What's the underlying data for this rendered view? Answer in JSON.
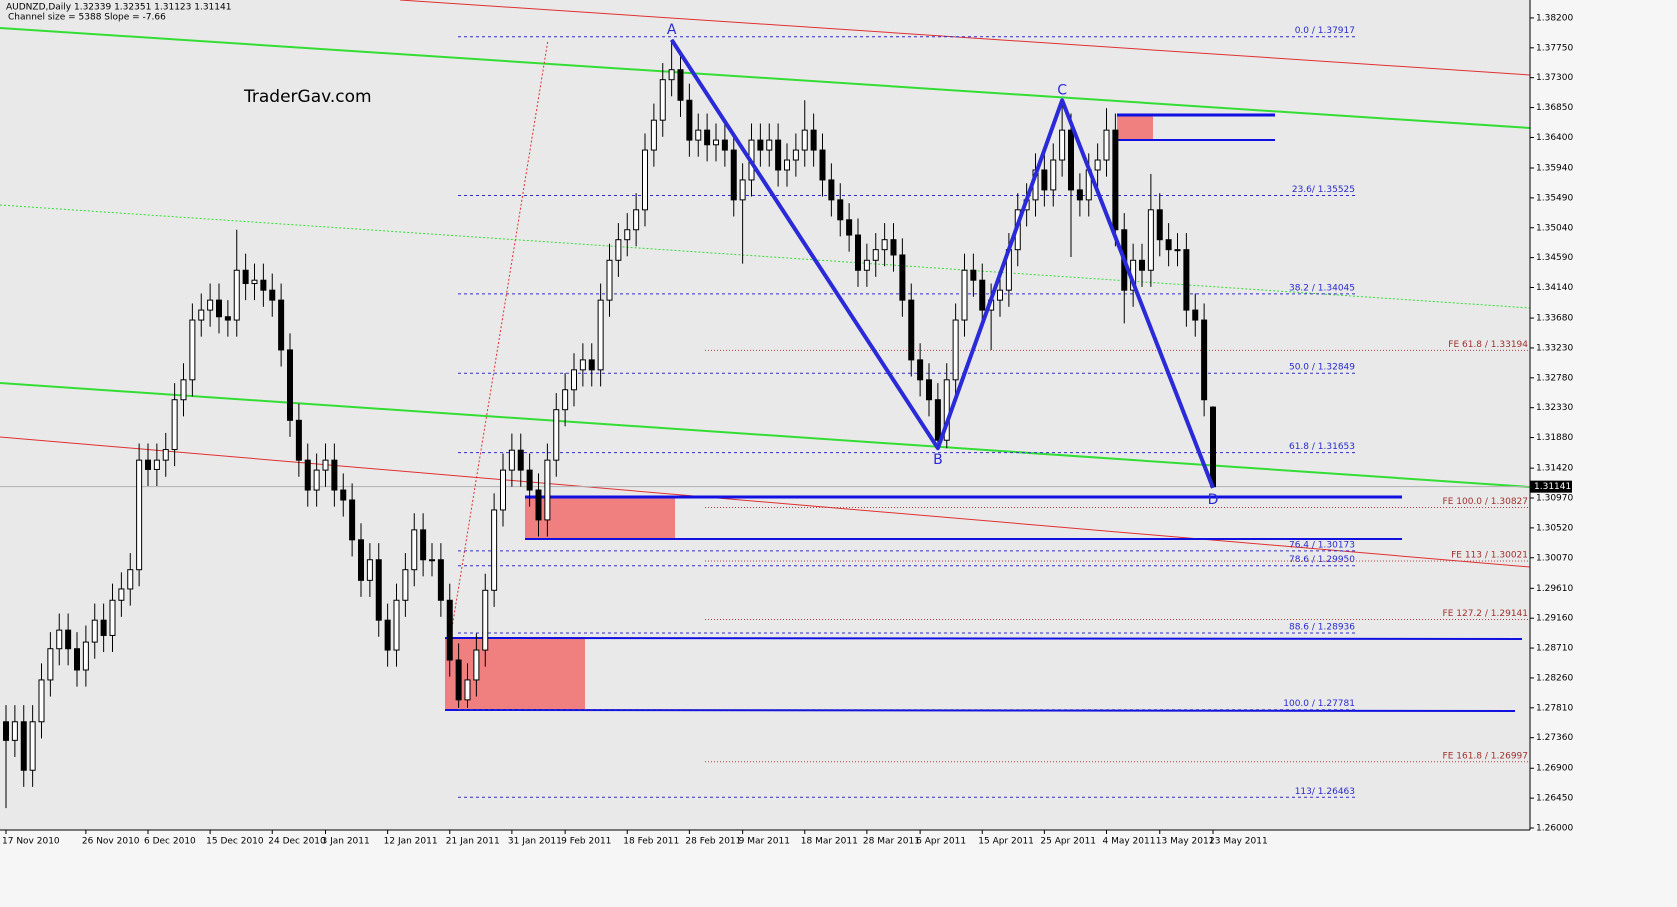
{
  "chart_data": {
    "type": "candlestick",
    "title": "AUDNZD,Daily  1.32339 1.32351 1.31123 1.31141",
    "subtitle": "Channel size = 5388 Slope = -7.66",
    "watermark": "TraderGav.com",
    "categories": [
      "17 Nov 2010",
      null,
      null,
      null,
      null,
      null,
      null,
      null,
      null,
      "26 Nov 2010",
      null,
      null,
      null,
      null,
      null,
      null,
      "6 Dec 2010",
      null,
      null,
      null,
      null,
      null,
      null,
      "15 Dec 2010",
      null,
      null,
      null,
      null,
      null,
      null,
      "24 Dec 2010",
      null,
      null,
      null,
      null,
      null,
      "3 Jan 2011",
      null,
      null,
      null,
      null,
      null,
      null,
      "12 Jan 2011",
      null,
      null,
      null,
      null,
      null,
      null,
      "21 Jan 2011",
      null,
      null,
      null,
      null,
      null,
      null,
      "31 Jan 2011",
      null,
      null,
      null,
      null,
      null,
      "9 Feb 2011",
      null,
      null,
      null,
      null,
      null,
      null,
      "18 Feb 2011",
      null,
      null,
      null,
      null,
      null,
      null,
      "28 Feb 2011",
      null,
      null,
      null,
      null,
      null,
      "9 Mar 2011",
      null,
      null,
      null,
      null,
      null,
      null,
      "18 Mar 2011",
      null,
      null,
      null,
      null,
      null,
      null,
      "28 Mar 2011",
      null,
      null,
      null,
      null,
      null,
      "6 Apr 2011",
      null,
      null,
      null,
      null,
      null,
      null,
      "15 Apr 2011",
      null,
      null,
      null,
      null,
      null,
      null,
      "25 Apr 2011",
      null,
      null,
      null,
      null,
      null,
      null,
      "4 May 2011",
      null,
      null,
      null,
      null,
      null,
      "13 May 2011",
      null,
      null,
      null,
      null,
      null,
      "23 May 2011"
    ],
    "open": [
      1.276,
      1.2732,
      1.276,
      1.2687,
      1.276,
      1.2823,
      1.287,
      1.2898,
      1.287,
      1.2838,
      1.288,
      1.2913,
      1.289,
      1.2943,
      1.296,
      1.2989,
      1.3154,
      1.314,
      1.3154,
      1.317,
      1.3245,
      1.3275,
      1.3365,
      1.338,
      1.3395,
      1.337,
      1.3365,
      1.344,
      1.342,
      1.3425,
      1.341,
      1.3395,
      1.332,
      1.3214,
      1.3154,
      1.3109,
      1.3139,
      1.3154,
      1.3109,
      1.3094,
      1.3034,
      1.2973,
      1.3004,
      1.2913,
      1.2868,
      1.2943,
      1.2989,
      1.3049,
      1.3004,
      1.3004,
      1.2943,
      1.2853,
      1.2793,
      1.2823,
      1.2868,
      1.2958,
      1.3079,
      1.3139,
      1.3169,
      1.3139,
      1.3109,
      1.3064,
      1.3154,
      1.323,
      1.326,
      1.329,
      1.3305,
      1.329,
      1.3395,
      1.3455,
      1.3486,
      1.3501,
      1.3531,
      1.3621,
      1.3666,
      1.3727,
      1.3742,
      1.3696,
      1.3636,
      1.3651,
      1.3629,
      1.3636,
      1.3621,
      1.3546,
      1.3576,
      1.3636,
      1.3621,
      1.3636,
      1.3591,
      1.3606,
      1.3621,
      1.3651,
      1.3621,
      1.3576,
      1.3546,
      1.3516,
      1.3493,
      1.344,
      1.3455,
      1.3471,
      1.3486,
      1.3463,
      1.3395,
      1.3305,
      1.3275,
      1.3245,
      1.3184,
      1.3275,
      1.3365,
      1.344,
      1.3425,
      1.338,
      1.3395,
      1.341,
      1.3471,
      1.3531,
      1.3546,
      1.3591,
      1.3561,
      1.3606,
      1.3651,
      1.3561,
      1.3546,
      1.3591,
      1.3606,
      1.3651,
      1.3501,
      1.341,
      1.3455,
      1.344,
      1.3531,
      1.3486,
      1.3471,
      1.3471,
      1.338,
      1.3365,
      1.32339
    ],
    "high": [
      1.2785,
      1.2785,
      1.2785,
      1.2785,
      1.2848,
      1.2895,
      1.2923,
      1.2923,
      1.2895,
      1.2905,
      1.2938,
      1.2938,
      1.2968,
      1.2985,
      1.3014,
      1.3179,
      1.3179,
      1.3179,
      1.3195,
      1.327,
      1.33,
      1.339,
      1.3405,
      1.342,
      1.342,
      1.3395,
      1.3501,
      1.3465,
      1.345,
      1.345,
      1.3435,
      1.342,
      1.3345,
      1.3239,
      1.3179,
      1.3164,
      1.3179,
      1.3179,
      1.3134,
      1.3119,
      1.3059,
      1.3029,
      1.3029,
      1.2938,
      1.2968,
      1.3014,
      1.3074,
      1.3074,
      1.3029,
      1.3029,
      1.2968,
      1.2878,
      1.2848,
      1.2893,
      1.2983,
      1.3104,
      1.3164,
      1.3194,
      1.3194,
      1.3164,
      1.3134,
      1.3179,
      1.3255,
      1.3285,
      1.3315,
      1.333,
      1.333,
      1.342,
      1.348,
      1.3511,
      1.3526,
      1.3556,
      1.3646,
      1.3691,
      1.3752,
      1.3787,
      1.3767,
      1.3721,
      1.3676,
      1.3676,
      1.3661,
      1.3661,
      1.3646,
      1.3601,
      1.3661,
      1.3661,
      1.3661,
      1.3661,
      1.3631,
      1.3646,
      1.3696,
      1.3676,
      1.3646,
      1.3601,
      1.3571,
      1.3541,
      1.3518,
      1.348,
      1.3496,
      1.3511,
      1.3511,
      1.3488,
      1.342,
      1.333,
      1.33,
      1.327,
      1.33,
      1.339,
      1.3465,
      1.3465,
      1.345,
      1.342,
      1.3435,
      1.3496,
      1.3556,
      1.3571,
      1.3616,
      1.3616,
      1.3631,
      1.3696,
      1.3676,
      1.3586,
      1.3616,
      1.3631,
      1.3684,
      1.3676,
      1.3526,
      1.348,
      1.348,
      1.3585,
      1.3556,
      1.3511,
      1.3496,
      1.3496,
      1.3405,
      1.339,
      1.32351
    ],
    "low": [
      1.263,
      1.2707,
      1.2662,
      1.2662,
      1.2735,
      1.2798,
      1.2845,
      1.2845,
      1.2813,
      1.2813,
      1.2855,
      1.2865,
      1.2865,
      1.2918,
      1.2935,
      1.2964,
      1.3115,
      1.3115,
      1.3129,
      1.3145,
      1.322,
      1.325,
      1.334,
      1.3355,
      1.3345,
      1.334,
      1.334,
      1.3395,
      1.3395,
      1.3385,
      1.337,
      1.3295,
      1.3189,
      1.3129,
      1.3084,
      1.3084,
      1.3114,
      1.3084,
      1.3069,
      1.3009,
      1.2948,
      1.2948,
      1.2888,
      1.2843,
      1.2843,
      1.2918,
      1.2964,
      1.2979,
      1.2979,
      1.2918,
      1.2828,
      1.2781,
      1.2781,
      1.2798,
      1.2843,
      1.2933,
      1.3054,
      1.3114,
      1.3114,
      1.3084,
      1.3039,
      1.3039,
      1.3129,
      1.3205,
      1.3235,
      1.3265,
      1.3265,
      1.3265,
      1.337,
      1.343,
      1.3461,
      1.3476,
      1.3506,
      1.3596,
      1.3641,
      1.3702,
      1.3671,
      1.3611,
      1.3611,
      1.3604,
      1.3604,
      1.3596,
      1.3521,
      1.345,
      1.3551,
      1.3596,
      1.3596,
      1.3566,
      1.3566,
      1.3581,
      1.3596,
      1.3596,
      1.3551,
      1.3521,
      1.3491,
      1.3468,
      1.3415,
      1.3415,
      1.343,
      1.3446,
      1.3438,
      1.337,
      1.328,
      1.325,
      1.322,
      1.3172,
      1.3172,
      1.325,
      1.334,
      1.34,
      1.3355,
      1.332,
      1.337,
      1.3385,
      1.3446,
      1.3506,
      1.3521,
      1.3536,
      1.3536,
      1.3581,
      1.346,
      1.3521,
      1.3521,
      1.3566,
      1.3581,
      1.3476,
      1.336,
      1.3385,
      1.3415,
      1.3415,
      1.3461,
      1.3446,
      1.3446,
      1.3355,
      1.334,
      1.322,
      1.31123
    ],
    "close": [
      1.2732,
      1.276,
      1.2687,
      1.276,
      1.2823,
      1.287,
      1.2898,
      1.287,
      1.2838,
      1.288,
      1.2913,
      1.289,
      1.2943,
      1.296,
      1.2989,
      1.3154,
      1.314,
      1.3154,
      1.317,
      1.3245,
      1.3275,
      1.3365,
      1.338,
      1.3395,
      1.337,
      1.3365,
      1.344,
      1.342,
      1.3425,
      1.341,
      1.3395,
      1.332,
      1.3214,
      1.3154,
      1.3109,
      1.3139,
      1.3154,
      1.3109,
      1.3094,
      1.3034,
      1.2973,
      1.3004,
      1.2913,
      1.2868,
      1.2943,
      1.2989,
      1.3049,
      1.3004,
      1.3004,
      1.2943,
      1.2853,
      1.2793,
      1.2823,
      1.2868,
      1.2958,
      1.3079,
      1.3139,
      1.3169,
      1.3139,
      1.3109,
      1.3064,
      1.3154,
      1.323,
      1.326,
      1.329,
      1.3305,
      1.329,
      1.3395,
      1.3455,
      1.3486,
      1.3501,
      1.3531,
      1.3621,
      1.3666,
      1.3727,
      1.3742,
      1.3696,
      1.3636,
      1.3651,
      1.3629,
      1.3636,
      1.3621,
      1.3546,
      1.3576,
      1.3636,
      1.3621,
      1.3636,
      1.3591,
      1.3606,
      1.3621,
      1.3651,
      1.3621,
      1.3576,
      1.3546,
      1.3516,
      1.3493,
      1.344,
      1.3455,
      1.3471,
      1.3486,
      1.3463,
      1.3395,
      1.3305,
      1.3275,
      1.3245,
      1.3184,
      1.3275,
      1.3365,
      1.344,
      1.3425,
      1.338,
      1.3395,
      1.341,
      1.3471,
      1.3531,
      1.3546,
      1.3591,
      1.3561,
      1.3606,
      1.3651,
      1.3561,
      1.3546,
      1.3591,
      1.3606,
      1.3651,
      1.3501,
      1.341,
      1.3455,
      1.344,
      1.3531,
      1.3486,
      1.3471,
      1.3471,
      1.338,
      1.3365,
      1.3245,
      1.31141
    ],
    "last_price": 1.31141,
    "ylim": [
      1.2597,
      1.3847
    ],
    "yticks": [
      {
        "value": 1.382,
        "label": "1.38200"
      },
      {
        "value": 1.3775,
        "label": "1.37750"
      },
      {
        "value": 1.373,
        "label": "1.37300"
      },
      {
        "value": 1.3685,
        "label": "1.36850"
      },
      {
        "value": 1.364,
        "label": "1.36400"
      },
      {
        "value": 1.3594,
        "label": "1.35940"
      },
      {
        "value": 1.3549,
        "label": "1.35490"
      },
      {
        "value": 1.3504,
        "label": "1.35040"
      },
      {
        "value": 1.3459,
        "label": "1.34590"
      },
      {
        "value": 1.3414,
        "label": "1.34140"
      },
      {
        "value": 1.3368,
        "label": "1.33680"
      },
      {
        "value": 1.3323,
        "label": "1.33230"
      },
      {
        "value": 1.3278,
        "label": "1.32780"
      },
      {
        "value": 1.3233,
        "label": "1.32330"
      },
      {
        "value": 1.3188,
        "label": "1.31880"
      },
      {
        "value": 1.3142,
        "label": "1.31420"
      },
      {
        "value": 1.3097,
        "label": "1.30970"
      },
      {
        "value": 1.3052,
        "label": "1.30520"
      },
      {
        "value": 1.3007,
        "label": "1.30070"
      },
      {
        "value": 1.2961,
        "label": "1.29610"
      },
      {
        "value": 1.2916,
        "label": "1.29160"
      },
      {
        "value": 1.2871,
        "label": "1.28710"
      },
      {
        "value": 1.2826,
        "label": "1.28260"
      },
      {
        "value": 1.2781,
        "label": "1.27810"
      },
      {
        "value": 1.2736,
        "label": "1.27360"
      },
      {
        "value": 1.269,
        "label": "1.26900"
      },
      {
        "value": 1.2645,
        "label": "1.26450"
      },
      {
        "value": 1.26,
        "label": "1.26000"
      }
    ],
    "fib_levels": [
      {
        "label": "0.0 / 1.37917",
        "value": 1.37917
      },
      {
        "label": "23.6/ 1.35525",
        "value": 1.35525
      },
      {
        "label": "38.2 / 1.34045",
        "value": 1.34045
      },
      {
        "label": "50.0 / 1.32849",
        "value": 1.32849
      },
      {
        "label": "61.8 / 1.31653",
        "value": 1.31653
      },
      {
        "label": "76.4 / 1.30173",
        "value": 1.30173
      },
      {
        "label": "78.6 / 1.29950",
        "value": 1.2995
      },
      {
        "label": "88.6 / 1.28936",
        "value": 1.28936
      },
      {
        "label": "100.0 / 1.27781",
        "value": 1.27781
      },
      {
        "label": "113/ 1.26463",
        "value": 1.26463
      }
    ],
    "fe_levels": [
      {
        "label": "FE 61.8 / 1.33194",
        "value": 1.33194
      },
      {
        "label": "FE 100.0 / 1.30827",
        "value": 1.30827
      },
      {
        "label": "FE 113 / 1.30021",
        "value": 1.30021
      },
      {
        "label": "FE 127.2 / 1.29141",
        "value": 1.29141
      },
      {
        "label": "FE 161.8 / 1.26997",
        "value": 1.26997
      }
    ],
    "pattern": {
      "labels": [
        "A",
        "B",
        "C",
        "D"
      ],
      "x": [
        75,
        105,
        119,
        136
      ],
      "y": [
        1.3787,
        1.3172,
        1.3696,
        1.31123
      ],
      "color": "#2a2ad8"
    },
    "up_color": "#ffffff",
    "down_color": "#000000"
  }
}
